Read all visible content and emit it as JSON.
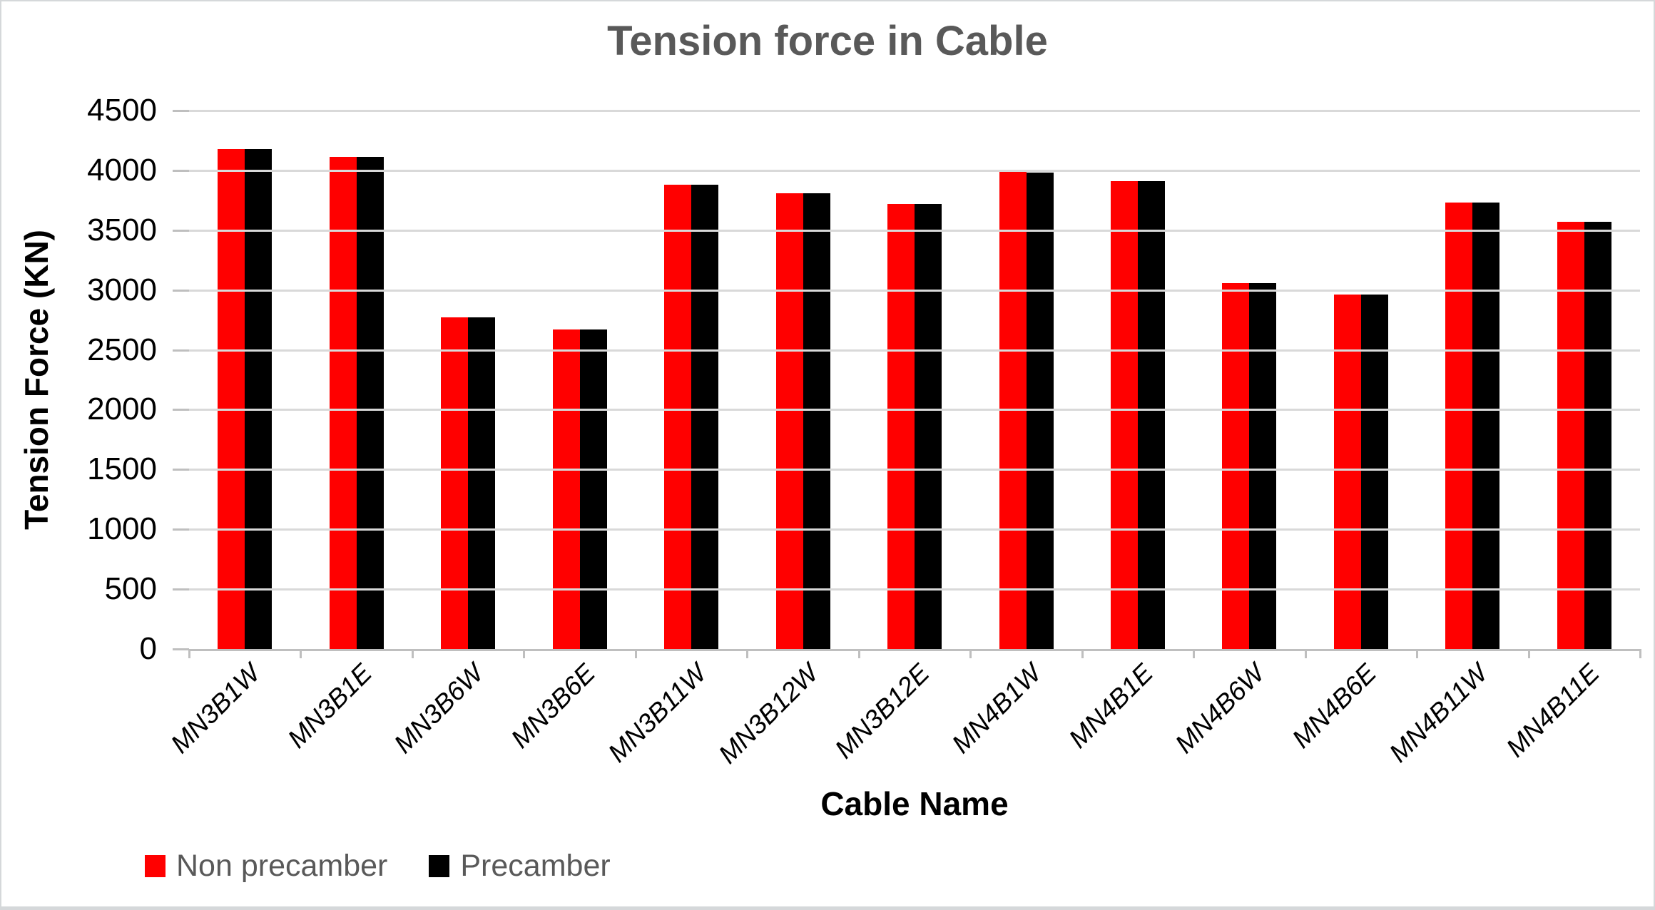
{
  "chart_data": {
    "type": "bar",
    "title": "Tension force in Cable",
    "xlabel": "Cable Name",
    "ylabel": "Tension Force (KN)",
    "ylim": [
      0,
      4500
    ],
    "ytick_step": 500,
    "grid": true,
    "legend_position": "bottom-left",
    "categories": [
      "MN3B1W",
      "MN3B1E",
      "MN3B6W",
      "MN3B6E",
      "MN3B11W",
      "MN3B12W",
      "MN3B12E",
      "MN4B1W",
      "MN4B1E",
      "MN4B6W",
      "MN4B6E",
      "MN4B11W",
      "MN4B11E"
    ],
    "series": [
      {
        "name": "Non precamber",
        "color": "#FF0000",
        "values": [
          4180,
          4110,
          2770,
          2670,
          3880,
          3810,
          3720,
          3990,
          3910,
          3060,
          2960,
          3730,
          3570
        ]
      },
      {
        "name": "Precamber",
        "color": "#000000",
        "values": [
          4180,
          4110,
          2770,
          2670,
          3880,
          3810,
          3720,
          3980,
          3910,
          3060,
          2960,
          3730,
          3570
        ]
      }
    ],
    "colors": {
      "gridline": "#D9D9D9",
      "axis": "#BFBFBF",
      "title_text": "#595959",
      "legend_text": "#595959",
      "tick_label_text": "#000000"
    }
  }
}
